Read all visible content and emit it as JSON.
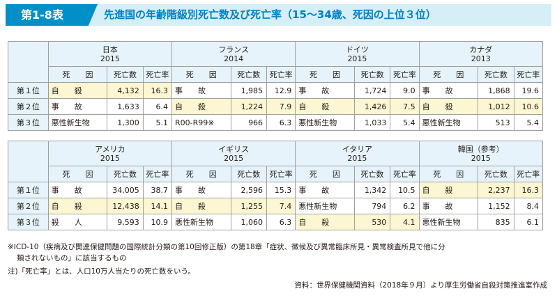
{
  "title": {
    "badge": "第1-8表",
    "text": "先進国の年齢階級別死亡数及び死亡率（15～34歳、死因の上位３位）"
  },
  "columns": {
    "cause": "死　　因",
    "deaths": "死亡数",
    "rate": "死亡率"
  },
  "ranks": [
    "第１位",
    "第２位",
    "第３位"
  ],
  "table1": [
    {
      "country": "日本",
      "year": "2015",
      "rows": [
        {
          "cause": "自　　殺",
          "deaths": "4,132",
          "rate": "16.3",
          "hl": true
        },
        {
          "cause": "事　　故",
          "deaths": "1,633",
          "rate": "6.4",
          "hl": false
        },
        {
          "cause": "悪性新生物",
          "deaths": "1,300",
          "rate": "5.1",
          "hl": false
        }
      ]
    },
    {
      "country": "フランス",
      "year": "2014",
      "rows": [
        {
          "cause": "事　　故",
          "deaths": "1,985",
          "rate": "12.9",
          "hl": false
        },
        {
          "cause": "自　　殺",
          "deaths": "1,224",
          "rate": "7.9",
          "hl": true
        },
        {
          "cause": "R00-R99※",
          "deaths": "966",
          "rate": "6.3",
          "hl": false
        }
      ]
    },
    {
      "country": "ドイツ",
      "year": "2015",
      "rows": [
        {
          "cause": "事　　故",
          "deaths": "1,724",
          "rate": "9.0",
          "hl": false
        },
        {
          "cause": "自　　殺",
          "deaths": "1,426",
          "rate": "7.5",
          "hl": true
        },
        {
          "cause": "悪性新生物",
          "deaths": "1,033",
          "rate": "5.4",
          "hl": false
        }
      ]
    },
    {
      "country": "カナダ",
      "year": "2013",
      "rows": [
        {
          "cause": "事　　故",
          "deaths": "1,868",
          "rate": "19.6",
          "hl": false
        },
        {
          "cause": "自　　殺",
          "deaths": "1,012",
          "rate": "10.6",
          "hl": true
        },
        {
          "cause": "悪性新生物",
          "deaths": "513",
          "rate": "5.4",
          "hl": false
        }
      ]
    }
  ],
  "table2": [
    {
      "country": "アメリカ",
      "year": "2015",
      "rows": [
        {
          "cause": "事　　故",
          "deaths": "34,005",
          "rate": "38.7",
          "hl": false
        },
        {
          "cause": "自　　殺",
          "deaths": "12,438",
          "rate": "14.1",
          "hl": true
        },
        {
          "cause": "殺　　人",
          "deaths": "9,593",
          "rate": "10.9",
          "hl": false
        }
      ]
    },
    {
      "country": "イギリス",
      "year": "2015",
      "rows": [
        {
          "cause": "事　　故",
          "deaths": "2,596",
          "rate": "15.3",
          "hl": false
        },
        {
          "cause": "自　　殺",
          "deaths": "1,255",
          "rate": "7.4",
          "hl": true
        },
        {
          "cause": "悪性新生物",
          "deaths": "1,060",
          "rate": "6.3",
          "hl": false
        }
      ]
    },
    {
      "country": "イタリア",
      "year": "2015",
      "rows": [
        {
          "cause": "事　　故",
          "deaths": "1,342",
          "rate": "10.5",
          "hl": false
        },
        {
          "cause": "悪性新生物",
          "deaths": "794",
          "rate": "6.2",
          "hl": false
        },
        {
          "cause": "自　　殺",
          "deaths": "530",
          "rate": "4.1",
          "hl": true
        }
      ]
    },
    {
      "country": "韓国（参考）",
      "year": "2015",
      "rows": [
        {
          "cause": "自　　殺",
          "deaths": "2,237",
          "rate": "16.3",
          "hl": true
        },
        {
          "cause": "事　　故",
          "deaths": "1,152",
          "rate": "8.4",
          "hl": false
        },
        {
          "cause": "悪性新生物",
          "deaths": "835",
          "rate": "6.1",
          "hl": false
        }
      ]
    }
  ],
  "notes": {
    "n1a": "※ICD-10（疾病及び関連保健問題の国際統計分類の第10回修正版）の第18章「症状、徴候及び異常臨床所見・異常検査所見で他に分",
    "n1b": "類されないもの」に該当するもの",
    "n2": "注)「死亡率」とは、人口10万人当たりの死亡数をいう。",
    "source": "資料：世界保健機関資料（2018年９月）より厚生労働省自殺対策推進室作成"
  },
  "colors": {
    "accent": "#0090c8",
    "title_bg": "#d6eef8",
    "header_bg": "#e6f3fb",
    "highlight": "#fdf6d2"
  }
}
